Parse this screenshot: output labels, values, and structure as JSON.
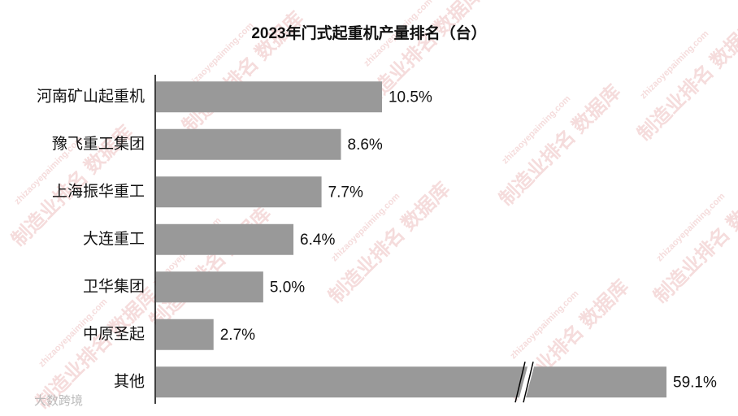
{
  "chart_data": {
    "type": "bar",
    "orientation": "horizontal",
    "title": "2023年门式起重机产量排名（台）",
    "categories": [
      "河南矿山起重机",
      "豫飞重工集团",
      "上海振华重工",
      "大连重工",
      "卫华集团",
      "中原圣起",
      "其他"
    ],
    "values": [
      10.5,
      8.6,
      7.7,
      6.4,
      5.0,
      2.7,
      59.1
    ],
    "value_labels": [
      "10.5%",
      "8.6%",
      "7.7%",
      "6.4%",
      "5.0%",
      "2.7%",
      "59.1%"
    ],
    "color": "#999999",
    "watermark": "制造业排名 数据库",
    "watermark_url": "zhizaoyepaiming.com",
    "source": "大数跨境"
  }
}
